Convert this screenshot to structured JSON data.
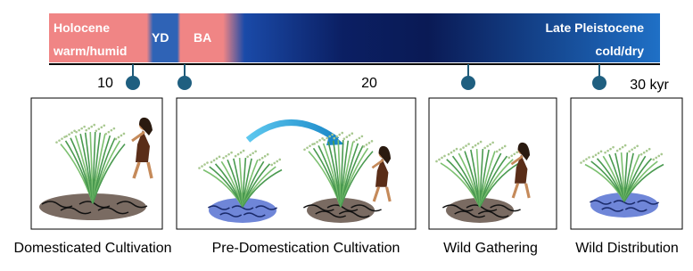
{
  "timeline": {
    "holocene": "Holocene",
    "holocene_climate": "warm/humid",
    "yd": "YD",
    "ba": "BA",
    "pleistocene": "Late Pleistocene",
    "pleistocene_climate": "cold/dry",
    "ticks": [
      "10",
      "20",
      "30 kyr"
    ]
  },
  "panels": [
    {
      "caption": "Domesticated Cultivation"
    },
    {
      "caption": "Pre-Domestication Cultivation"
    },
    {
      "caption": "Wild Gathering"
    },
    {
      "caption": "Wild Distribution"
    }
  ]
}
